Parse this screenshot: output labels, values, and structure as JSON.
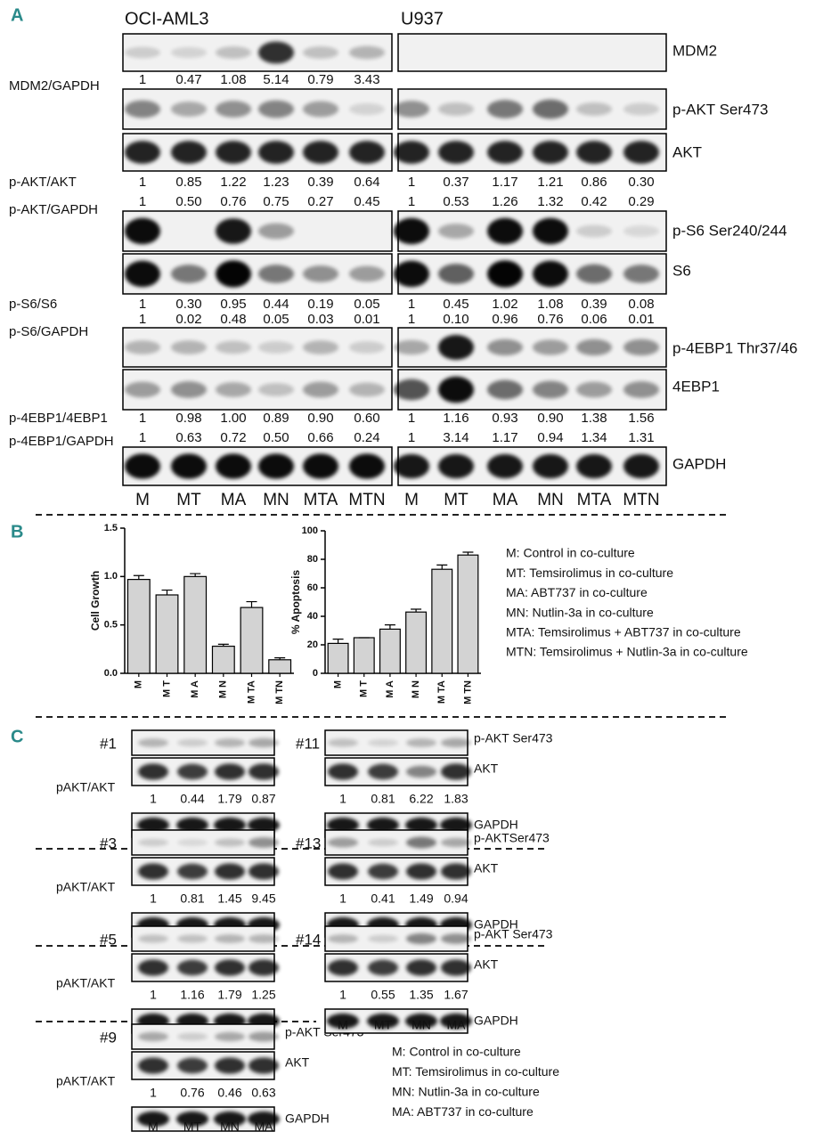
{
  "panel_a": {
    "label": "A",
    "cell_lines": [
      "OCI-AML3",
      "U937"
    ],
    "blot_labels": [
      "MDM2",
      "p-AKT Ser473",
      "AKT",
      "p-S6 Ser240/244",
      "S6",
      "p-4EBP1 Thr37/46",
      "4EBP1",
      "GAPDH"
    ],
    "ratios": [
      {
        "name": "MDM2/GAPDH",
        "left": [
          "1",
          "0.47",
          "1.08",
          "5.14",
          "0.79",
          "3.43"
        ]
      },
      {
        "name": "p-AKT/AKT",
        "left": [
          "1",
          "0.85",
          "1.22",
          "1.23",
          "0.39",
          "0.64"
        ],
        "right": [
          "1",
          "0.37",
          "1.17",
          "1.21",
          "0.86",
          "0.30"
        ]
      },
      {
        "name": "p-AKT/GAPDH",
        "left": [
          "1",
          "0.50",
          "0.76",
          "0.75",
          "0.27",
          "0.45"
        ],
        "right": [
          "1",
          "0.53",
          "1.26",
          "1.32",
          "0.42",
          "0.29"
        ]
      },
      {
        "name": "p-S6/S6",
        "left": [
          "1",
          "0.30",
          "0.95",
          "0.44",
          "0.19",
          "0.05"
        ],
        "right": [
          "1",
          "0.45",
          "1.02",
          "1.08",
          "0.39",
          "0.08"
        ]
      },
      {
        "name": "p-S6/GAPDH",
        "left": [
          "1",
          "0.02",
          "0.48",
          "0.05",
          "0.03",
          "0.01"
        ],
        "right": [
          "1",
          "0.10",
          "0.96",
          "0.76",
          "0.06",
          "0.01"
        ]
      },
      {
        "name": "p-4EBP1/4EBP1",
        "left": [
          "1",
          "0.98",
          "1.00",
          "0.89",
          "0.90",
          "0.60"
        ],
        "right": [
          "1",
          "1.16",
          "0.93",
          "0.90",
          "1.38",
          "1.56"
        ]
      },
      {
        "name": "p-4EBP1/GAPDH",
        "left": [
          "1",
          "0.63",
          "0.72",
          "0.50",
          "0.66",
          "0.24"
        ],
        "right": [
          "1",
          "3.14",
          "1.17",
          "0.94",
          "1.34",
          "1.31"
        ]
      }
    ],
    "lanes": [
      "M",
      "MT",
      "MA",
      "MN",
      "MTA",
      "MTN"
    ]
  },
  "panel_b": {
    "label": "B",
    "legend": [
      "M: Control in co-culture",
      "MT: Temsirolimus in co-culture",
      "MA: ABT737 in co-culture",
      "MN: Nutlin-3a in co-culture",
      "MTA: Temsirolimus + ABT737 in co-culture",
      "MTN: Temsirolimus + Nutlin-3a in co-culture"
    ]
  },
  "chart_data": [
    {
      "type": "bar",
      "y_label": "Cell Growth",
      "categories": [
        "M",
        "M T",
        "M A",
        "M N",
        "M TA",
        "M TN"
      ],
      "values": [
        0.97,
        0.81,
        1.0,
        0.28,
        0.68,
        0.14
      ],
      "errors": [
        0.04,
        0.05,
        0.03,
        0.02,
        0.06,
        0.02
      ],
      "color": "#d3d3d3",
      "ylim": [
        0,
        1.5
      ],
      "yticks": [
        {
          "value": 0,
          "label": "0.0"
        },
        {
          "value": 0.5,
          "label": "0.5"
        },
        {
          "value": 1,
          "label": "1.0"
        },
        {
          "value": 1.5,
          "label": "1.5"
        }
      ]
    },
    {
      "type": "bar",
      "y_label": "% Apoptosis",
      "categories": [
        "M",
        "M T",
        "M A",
        "M N",
        "M TA",
        "M TN"
      ],
      "values": [
        21,
        25,
        31,
        43,
        73,
        83
      ],
      "errors": [
        3,
        0,
        3,
        2,
        3,
        2
      ],
      "color": "#d3d3d3",
      "ylim": [
        0,
        100
      ],
      "yticks": [
        0,
        20,
        40,
        60,
        80,
        100
      ]
    }
  ],
  "panel_c": {
    "label": "C",
    "ratio_label": "pAKT/AKT",
    "lanes": [
      "M",
      "MT",
      "MN",
      "MA"
    ],
    "groups": [
      {
        "id": "#1",
        "values": [
          "1",
          "0.44",
          "1.79",
          "0.87"
        ]
      },
      {
        "id": "#3",
        "values": [
          "1",
          "0.81",
          "1.45",
          "9.45"
        ]
      },
      {
        "id": "#5",
        "values": [
          "1",
          "1.16",
          "1.79",
          "1.25"
        ]
      },
      {
        "id": "#9",
        "values": [
          "1",
          "0.76",
          "0.46",
          "0.63"
        ],
        "blot_labels": [
          "p-AKT Ser473",
          "AKT",
          "GAPDH"
        ]
      },
      {
        "id": "#11",
        "values": [
          "1",
          "0.81",
          "6.22",
          "1.83"
        ],
        "blot_labels": [
          "p-AKT Ser473",
          "AKT",
          "GAPDH"
        ]
      },
      {
        "id": "#13",
        "values": [
          "1",
          "0.41",
          "1.49",
          "0.94"
        ],
        "blot_labels": [
          "p-AKTSer473",
          "AKT",
          "GAPDH"
        ]
      },
      {
        "id": "#14",
        "values": [
          "1",
          "0.55",
          "1.35",
          "1.67"
        ],
        "blot_labels": [
          "p-AKT Ser473",
          "AKT",
          "GAPDH"
        ]
      }
    ],
    "legend": [
      "M: Control in co-culture",
      "MT: Temsirolimus in co-culture",
      "MN: Nutlin-3a in co-culture",
      "MA: ABT737 in co-culture"
    ]
  }
}
